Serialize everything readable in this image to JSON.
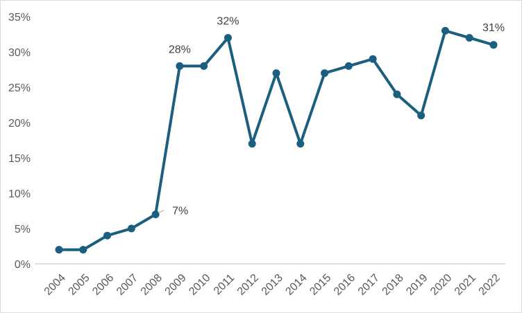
{
  "chart_data": {
    "type": "line",
    "title": "",
    "xlabel": "",
    "ylabel": "",
    "x": [
      "2004",
      "2005",
      "2006",
      "2007",
      "2008",
      "2009",
      "2010",
      "2011",
      "2012",
      "2013",
      "2014",
      "2015",
      "2016",
      "2017",
      "2018",
      "2019",
      "2020",
      "2021",
      "2022"
    ],
    "series": [
      {
        "name": "",
        "color": "#1a5e80",
        "values": [
          0.02,
          0.02,
          0.04,
          0.05,
          0.07,
          0.28,
          0.28,
          0.32,
          0.17,
          0.27,
          0.17,
          0.27,
          0.28,
          0.29,
          0.24,
          0.21,
          0.33,
          0.32,
          0.31
        ]
      }
    ],
    "ylim": [
      0,
      0.35
    ],
    "yticks": [
      "0%",
      "5%",
      "10%",
      "15%",
      "20%",
      "25%",
      "30%",
      "35%"
    ],
    "grid": true,
    "legend": "none",
    "data_labels": [
      {
        "x": "2008",
        "text": "7%"
      },
      {
        "x": "2009",
        "text": "28%"
      },
      {
        "x": "2011",
        "text": "32%"
      },
      {
        "x": "2022",
        "text": "31%"
      }
    ]
  }
}
